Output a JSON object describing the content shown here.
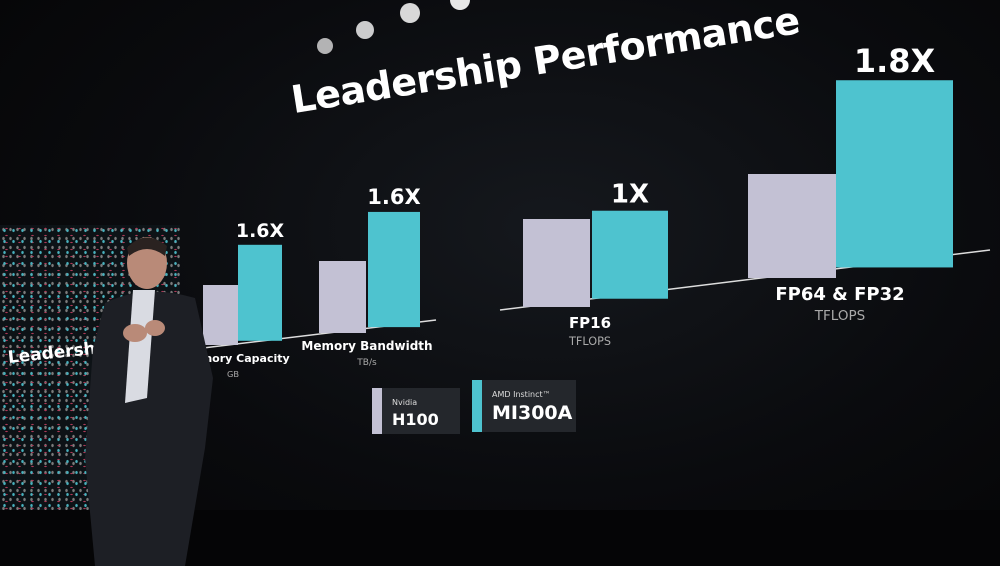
{
  "slide": {
    "title": "Leadership Performance",
    "side_screen_title": "Leadership P"
  },
  "legend": [
    {
      "small": "Nvidia",
      "big": "H100",
      "color": "#c3c1d4"
    },
    {
      "small": "AMD Instinct™",
      "big": "MI300A",
      "color": "#4ec3cf"
    }
  ],
  "chart_data": {
    "type": "bar",
    "title": "Leadership Performance",
    "categories": [
      "Memory Capacity",
      "Memory Bandwidth",
      "FP16",
      "FP64 & FP32"
    ],
    "units": [
      "GB",
      "TB/s",
      "TFLOPS",
      "TFLOPS"
    ],
    "series": [
      {
        "name": "Nvidia H100",
        "values": [
          1,
          1,
          1,
          1
        ],
        "color": "#c3c1d4"
      },
      {
        "name": "AMD Instinct™ MI300A",
        "values": [
          1.6,
          1.6,
          1,
          1.8
        ],
        "color": "#4ec3cf"
      }
    ],
    "data_labels": [
      "1.6X",
      "1.6X",
      "1X",
      "1.8X"
    ],
    "grid": false,
    "legend": "bottom"
  }
}
